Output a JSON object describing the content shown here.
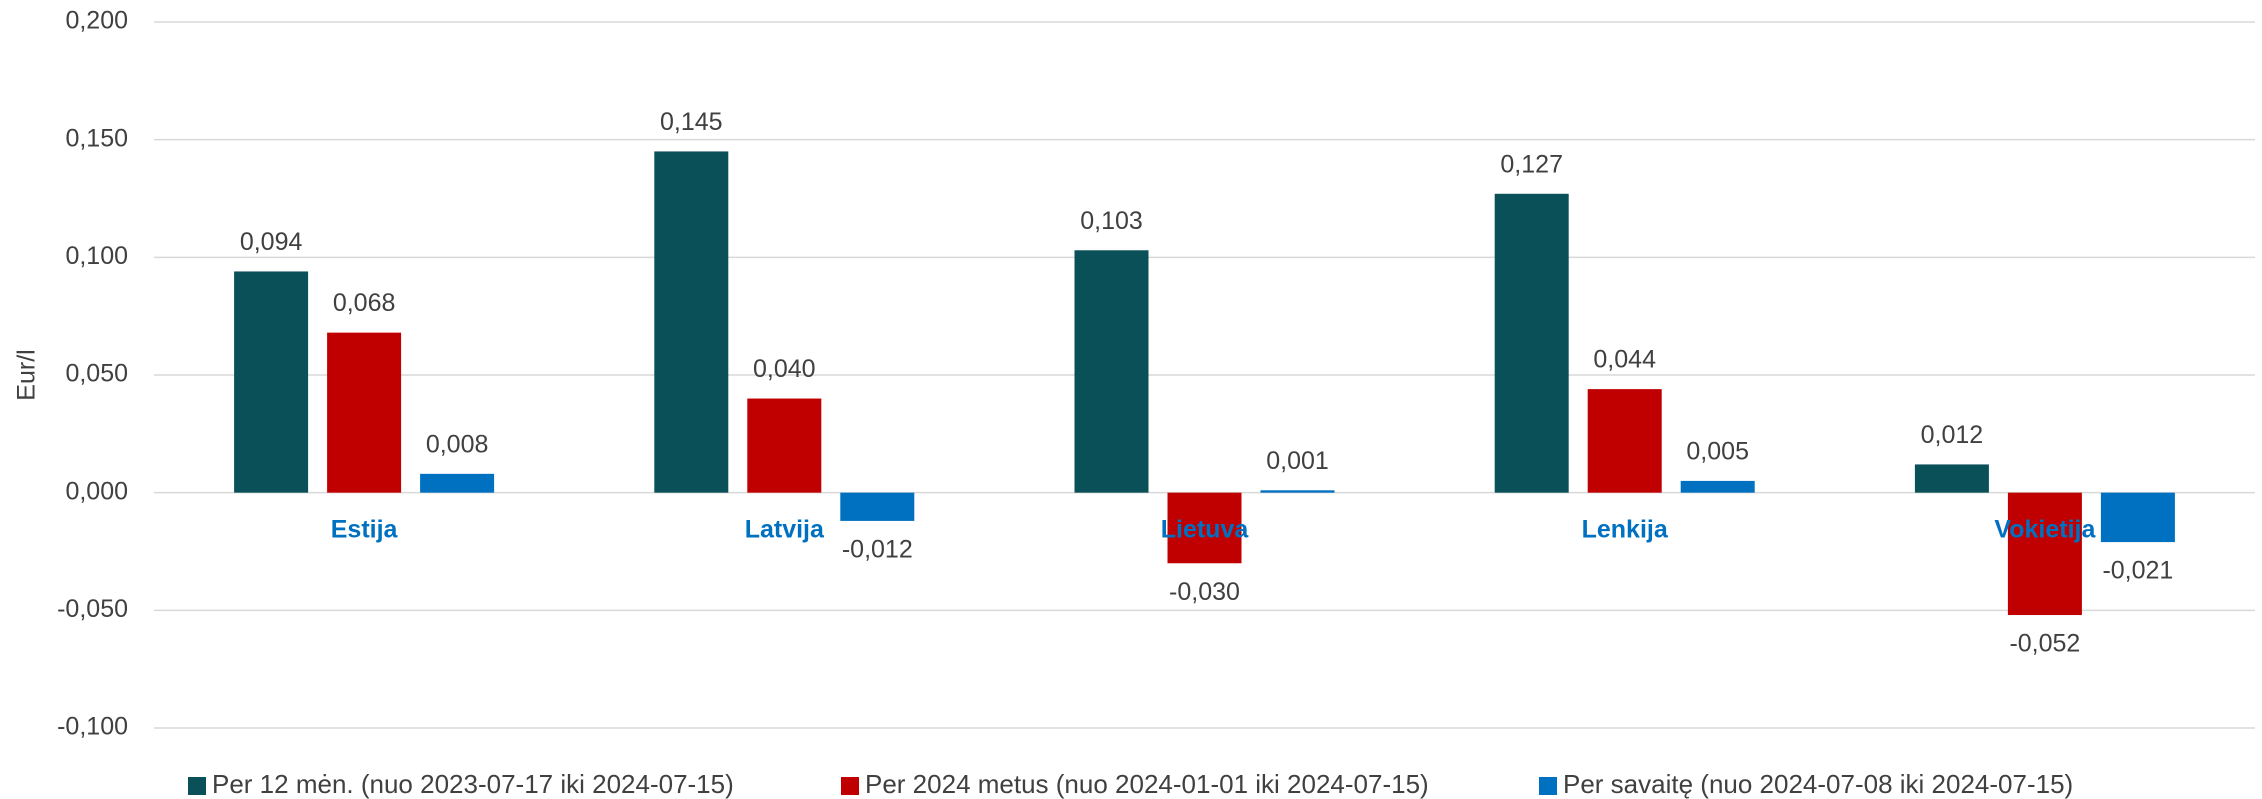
{
  "chart_data": {
    "type": "bar",
    "y_label": "Eur/l",
    "categories": [
      "Estija",
      "Latvija",
      "Lietuva",
      "Lenkija",
      "Vokietija"
    ],
    "series": [
      {
        "name": "Per 12 mėn. (nuo 2023-07-17 iki 2024-07-15)",
        "color": "#0a5058",
        "values": [
          0.094,
          0.145,
          0.103,
          0.127,
          0.012
        ],
        "value_labels": [
          "0,094",
          "0,145",
          "0,103",
          "0,127",
          "0,012"
        ]
      },
      {
        "name": "Per 2024 metus (nuo 2024-01-01 iki 2024-07-15)",
        "color": "#c00000",
        "values": [
          0.068,
          0.04,
          -0.03,
          0.044,
          -0.052
        ],
        "value_labels": [
          "0,068",
          "0,040",
          "-0,030",
          "0,044",
          "-0,052"
        ]
      },
      {
        "name": "Per savaitę (nuo 2024-07-08 iki 2024-07-15)",
        "color": "#0070c0",
        "values": [
          0.008,
          -0.012,
          0.001,
          0.005,
          -0.021
        ],
        "value_labels": [
          "0,008",
          "-0,012",
          "0,001",
          "0,005",
          "-0,021"
        ]
      }
    ],
    "ylim": [
      -0.1,
      0.2
    ],
    "yticks": [
      {
        "value": -0.1,
        "label": "-0,100"
      },
      {
        "value": -0.05,
        "label": "-0,050"
      },
      {
        "value": 0,
        "label": "0,000"
      },
      {
        "value": 0.05,
        "label": "0,050"
      },
      {
        "value": 0.1,
        "label": "0,100"
      },
      {
        "value": 0.15,
        "label": "0,150"
      },
      {
        "value": 0.2,
        "label": "0,200"
      }
    ],
    "grid": true,
    "legend": "bottom"
  }
}
